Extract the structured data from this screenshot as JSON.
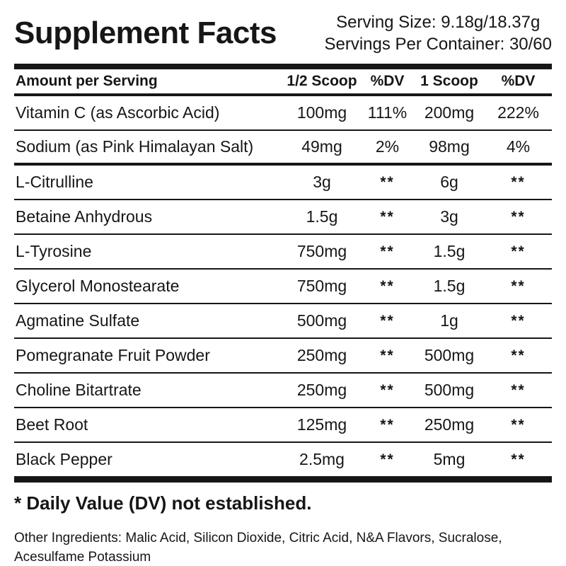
{
  "header": {
    "title": "Supplement Facts",
    "serving_size": "Serving Size: 9.18g/18.37g",
    "servings_per_container": "Servings Per Container: 30/60"
  },
  "table": {
    "columns": [
      "Amount per Serving",
      "1/2 Scoop",
      "%DV",
      "1 Scoop",
      "%DV"
    ],
    "rows": [
      {
        "name": "Vitamin C (as Ascorbic Acid)",
        "half_scoop": "100mg",
        "half_dv": "111%",
        "one_scoop": "200mg",
        "one_dv": "222%"
      },
      {
        "name": "Sodium (as Pink Himalayan Salt)",
        "half_scoop": "49mg",
        "half_dv": "2%",
        "one_scoop": "98mg",
        "one_dv": "4%"
      },
      {
        "name": "L-Citrulline",
        "half_scoop": "3g",
        "half_dv": "**",
        "one_scoop": "6g",
        "one_dv": "**"
      },
      {
        "name": "Betaine Anhydrous",
        "half_scoop": "1.5g",
        "half_dv": "**",
        "one_scoop": "3g",
        "one_dv": "**"
      },
      {
        "name": "L-Tyrosine",
        "half_scoop": "750mg",
        "half_dv": "**",
        "one_scoop": "1.5g",
        "one_dv": "**"
      },
      {
        "name": "Glycerol Monostearate",
        "half_scoop": "750mg",
        "half_dv": "**",
        "one_scoop": "1.5g",
        "one_dv": "**"
      },
      {
        "name": "Agmatine Sulfate",
        "half_scoop": "500mg",
        "half_dv": "**",
        "one_scoop": "1g",
        "one_dv": "**"
      },
      {
        "name": "Pomegranate Fruit Powder",
        "half_scoop": "250mg",
        "half_dv": "**",
        "one_scoop": "500mg",
        "one_dv": "**"
      },
      {
        "name": "Choline Bitartrate",
        "half_scoop": "250mg",
        "half_dv": "**",
        "one_scoop": "500mg",
        "one_dv": "**"
      },
      {
        "name": "Beet Root",
        "half_scoop": "125mg",
        "half_dv": "**",
        "one_scoop": "250mg",
        "one_dv": "**"
      },
      {
        "name": "Black Pepper",
        "half_scoop": "2.5mg",
        "half_dv": "**",
        "one_scoop": "5mg",
        "one_dv": "**"
      }
    ]
  },
  "footnotes": {
    "dv_note": "* Daily Value (DV) not established.",
    "other_ingredients_line1": "Other Ingredients: Malic Acid, Silicon Dioxide, Citric Acid, N&A Flavors, Sucralose,",
    "other_ingredients_line2": "Acesulfame Potassium"
  },
  "colors": {
    "text": "#161616",
    "background": "#ffffff",
    "rule": "#161616"
  }
}
